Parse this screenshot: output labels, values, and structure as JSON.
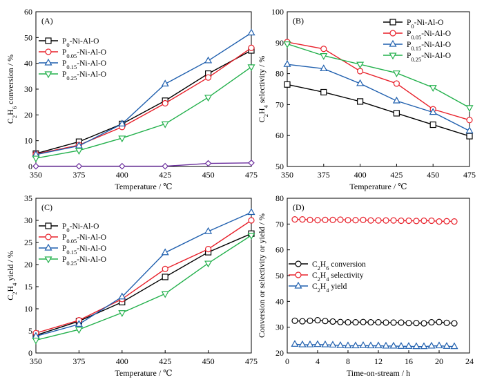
{
  "chart_data": [
    {
      "type": "line",
      "panel_label": "(A)",
      "x": [
        350,
        375,
        400,
        425,
        450,
        475
      ],
      "xlabel": "Temperature / ℃",
      "ylabel": {
        "pre": "C",
        "sub": "2",
        "mid": "H",
        "sub2": "6",
        "post": " conversion / %"
      },
      "xlim": [
        350,
        475
      ],
      "ylim": [
        0,
        60
      ],
      "xticks": [
        350,
        375,
        400,
        425,
        450,
        475
      ],
      "yticks": [
        0,
        10,
        20,
        30,
        40,
        50,
        60
      ],
      "legend": "upper-left",
      "series": [
        {
          "name": "P0-Ni-Al-O",
          "label": {
            "a": "P",
            "sub": "0",
            "b": "-Ni-Al-O"
          },
          "color": "#000000",
          "marker": "square",
          "values": [
            5.0,
            9.6,
            16.5,
            25.5,
            36.0,
            45.0
          ]
        },
        {
          "name": "P0.05-Ni-Al-O",
          "label": {
            "a": "P",
            "sub": "0.05",
            "b": "-Ni-Al-O"
          },
          "color": "#e8202a",
          "marker": "circle",
          "values": [
            4.8,
            8.3,
            15.3,
            24.5,
            34.5,
            46.0
          ]
        },
        {
          "name": "P0.15-Ni-Al-O",
          "label": {
            "a": "P",
            "sub": "0.15",
            "b": "-Ni-Al-O"
          },
          "color": "#1f5fae",
          "marker": "triangle-up",
          "values": [
            4.6,
            8.0,
            16.5,
            32.0,
            41.0,
            51.8
          ]
        },
        {
          "name": "P0.25-Ni-Al-O",
          "label": {
            "a": "P",
            "sub": "0.25",
            "b": "-Ni-Al-O"
          },
          "color": "#22b04b",
          "marker": "triangle-down",
          "values": [
            3.2,
            6.2,
            11.0,
            16.5,
            26.8,
            38.6
          ]
        },
        {
          "color": "#6a2d9c",
          "marker": "diamond",
          "values": [
            0.1,
            0.1,
            0.1,
            0.1,
            1.2,
            1.4
          ]
        }
      ]
    },
    {
      "type": "line",
      "panel_label": "(B)",
      "x": [
        350,
        375,
        400,
        425,
        450,
        475
      ],
      "xlabel": "Temperature / ℃",
      "ylabel": {
        "pre": "C",
        "sub": "2",
        "mid": "H",
        "sub2": "4",
        "post": " selectivity / %"
      },
      "xlim": [
        350,
        475
      ],
      "ylim": [
        50,
        100
      ],
      "xticks": [
        350,
        375,
        400,
        425,
        450,
        475
      ],
      "yticks": [
        50,
        60,
        70,
        80,
        90,
        100
      ],
      "legend": "upper-right",
      "series": [
        {
          "name": "P0-Ni-Al-O",
          "label": {
            "a": "P",
            "sub": "0",
            "b": "-Ni-Al-O"
          },
          "color": "#000000",
          "marker": "square",
          "values": [
            76.5,
            74.0,
            71.0,
            67.2,
            63.5,
            59.8
          ]
        },
        {
          "name": "P0.05-Ni-Al-O",
          "label": {
            "a": "P",
            "sub": "0.05",
            "b": "-Ni-Al-O"
          },
          "color": "#e8202a",
          "marker": "circle",
          "values": [
            90.2,
            88.0,
            80.8,
            76.8,
            68.5,
            65.0
          ]
        },
        {
          "name": "P0.15-Ni-Al-O",
          "label": {
            "a": "P",
            "sub": "0.15",
            "b": "-Ni-Al-O"
          },
          "color": "#1f5fae",
          "marker": "triangle-up",
          "values": [
            83.0,
            81.6,
            76.8,
            71.2,
            67.5,
            61.5
          ]
        },
        {
          "name": "P0.25-Ni-Al-O",
          "label": {
            "a": "P",
            "sub": "0.25",
            "b": "-Ni-Al-O"
          },
          "color": "#22b04b",
          "marker": "triangle-down",
          "values": [
            89.6,
            85.8,
            83.0,
            80.2,
            75.5,
            69.0
          ]
        }
      ]
    },
    {
      "type": "line",
      "panel_label": "(C)",
      "x": [
        350,
        375,
        400,
        425,
        450,
        475
      ],
      "xlabel": "Temperature / ℃",
      "ylabel": {
        "pre": "C",
        "sub": "2",
        "mid": "H",
        "sub2": "4",
        "post": " yield / %"
      },
      "xlim": [
        350,
        475
      ],
      "ylim": [
        0,
        35
      ],
      "xticks": [
        350,
        375,
        400,
        425,
        450,
        475
      ],
      "yticks": [
        0,
        5,
        10,
        15,
        20,
        25,
        30,
        35
      ],
      "legend": "upper-left",
      "series": [
        {
          "name": "P0-Ni-Al-O",
          "label": {
            "a": "P",
            "sub": "0",
            "b": "-Ni-Al-O"
          },
          "color": "#000000",
          "marker": "square",
          "values": [
            4.0,
            7.2,
            11.5,
            17.2,
            22.8,
            27.0
          ]
        },
        {
          "name": "P0.05-Ni-Al-O",
          "label": {
            "a": "P",
            "sub": "0.05",
            "b": "-Ni-Al-O"
          },
          "color": "#e8202a",
          "marker": "circle",
          "values": [
            4.5,
            7.4,
            12.2,
            19.0,
            23.5,
            30.0
          ]
        },
        {
          "name": "P0.15-Ni-Al-O",
          "label": {
            "a": "P",
            "sub": "0.15",
            "b": "-Ni-Al-O"
          },
          "color": "#1f5fae",
          "marker": "triangle-up",
          "values": [
            3.8,
            6.5,
            12.7,
            22.7,
            27.5,
            31.8
          ]
        },
        {
          "name": "P0.25-Ni-Al-O",
          "label": {
            "a": "P",
            "sub": "0.25",
            "b": "-Ni-Al-O"
          },
          "color": "#22b04b",
          "marker": "triangle-down",
          "values": [
            2.9,
            5.3,
            9.1,
            13.4,
            20.3,
            26.6
          ]
        }
      ]
    },
    {
      "type": "line",
      "panel_label": "(D)",
      "x": [
        1,
        2,
        3,
        4,
        5,
        6,
        7,
        8,
        9,
        10,
        11,
        12,
        13,
        14,
        15,
        16,
        17,
        18,
        19,
        20,
        21,
        22
      ],
      "xlabel": "Time-on-stream / h",
      "ylabel": {
        "plain": "Conversion or selectivity or yield / %"
      },
      "xlim": [
        0,
        24
      ],
      "ylim": [
        20,
        80
      ],
      "xticks": [
        0,
        4,
        8,
        12,
        16,
        20,
        24
      ],
      "yticks": [
        20,
        30,
        40,
        50,
        60,
        70,
        80
      ],
      "legend": "middle-left",
      "series": [
        {
          "name": "C2H6 conversion",
          "label": {
            "a": "C",
            "sub": "2",
            "b": "H",
            "sub2": "6",
            "c": " conversion"
          },
          "color": "#000000",
          "marker": "circle",
          "values": [
            32.5,
            32.3,
            32.5,
            32.7,
            32.4,
            32.2,
            32.0,
            31.9,
            31.9,
            32.0,
            31.9,
            31.9,
            31.8,
            31.8,
            31.8,
            31.6,
            31.6,
            31.5,
            31.9,
            32.0,
            31.7,
            31.5
          ]
        },
        {
          "name": "C2H4 selectivity",
          "label": {
            "a": "C",
            "sub": "2",
            "b": "H",
            "sub2": "4",
            "c": " selectivity"
          },
          "color": "#e8202a",
          "marker": "circle",
          "values": [
            71.8,
            71.8,
            71.6,
            71.5,
            71.6,
            71.6,
            71.7,
            71.5,
            71.5,
            71.6,
            71.4,
            71.4,
            71.4,
            71.4,
            71.3,
            71.3,
            71.2,
            71.3,
            71.3,
            71.0,
            71.1,
            71.0
          ]
        },
        {
          "name": "C2H4 yield",
          "label": {
            "a": "C",
            "sub": "2",
            "b": "H",
            "sub2": "4",
            "c": " yield"
          },
          "color": "#1f5fae",
          "marker": "triangle-up",
          "values": [
            23.4,
            23.2,
            23.2,
            23.3,
            23.2,
            23.1,
            22.9,
            22.8,
            22.8,
            22.9,
            22.8,
            22.8,
            22.7,
            22.7,
            22.6,
            22.6,
            22.5,
            22.5,
            22.7,
            22.8,
            22.6,
            22.5
          ]
        }
      ]
    }
  ]
}
